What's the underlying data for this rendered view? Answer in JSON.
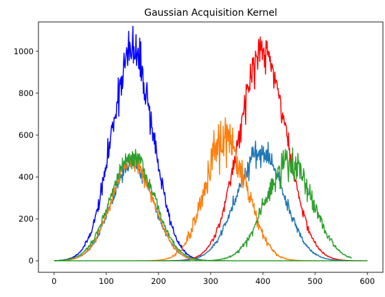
{
  "chart_data": {
    "type": "line",
    "title": "Gaussian Acquisition Kernel",
    "xlabel": "",
    "ylabel": "",
    "xlim": [
      -30,
      630
    ],
    "ylim": [
      -55,
      1140
    ],
    "x_ticks": [
      0,
      100,
      200,
      300,
      400,
      500,
      600
    ],
    "y_ticks": [
      0,
      200,
      400,
      600,
      800,
      1000
    ],
    "grid": false,
    "legend": "none",
    "series": [
      {
        "color": "#0000ff",
        "x_range": [
          0,
          600
        ],
        "mu": 150,
        "sigma": 40,
        "amplitude": 1000,
        "noise": 0.06,
        "seed": 11
      },
      {
        "color": "#ff0000",
        "x_range": [
          0,
          600
        ],
        "mu": 400,
        "sigma": 45,
        "amplitude": 1000,
        "noise": 0.05,
        "seed": 23
      },
      {
        "color": "#1f77b4",
        "x_range": [
          0,
          600
        ],
        "mu": 150,
        "sigma": 40,
        "amplitude": 470,
        "noise": 0.05,
        "seed": 37
      },
      {
        "color": "#1f77b4",
        "x_range": [
          0,
          600
        ],
        "mu": 395,
        "sigma": 45,
        "amplitude": 520,
        "noise": 0.06,
        "seed": 41
      },
      {
        "color": "#ff7f0e",
        "x_range": [
          0,
          600
        ],
        "mu": 150,
        "sigma": 40,
        "amplitude": 480,
        "noise": 0.05,
        "seed": 53
      },
      {
        "color": "#ff7f0e",
        "x_range": [
          0,
          600
        ],
        "mu": 330,
        "sigma": 40,
        "amplitude": 570,
        "noise": 0.11,
        "seed": 67
      },
      {
        "color": "#2ca02c",
        "x_range": [
          0,
          600
        ],
        "mu": 150,
        "sigma": 42,
        "amplitude": 500,
        "noise": 0.05,
        "seed": 79
      },
      {
        "color": "#2ca02c",
        "x_range": [
          0,
          570
        ],
        "mu": 450,
        "sigma": 45,
        "amplitude": 470,
        "noise": 0.1,
        "seed": 83
      }
    ]
  }
}
